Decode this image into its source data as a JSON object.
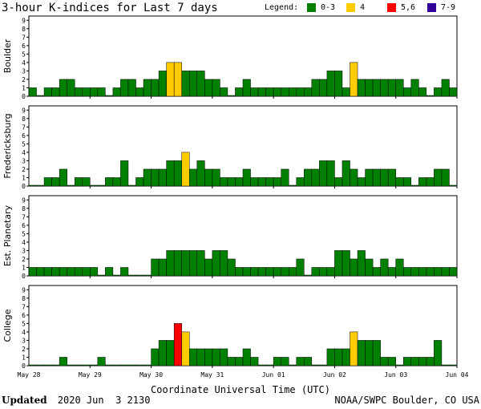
{
  "header": {
    "title": "3-hour K-indices for Last 7 days",
    "legend_label": "Legend:",
    "legend": [
      {
        "label": "0-3",
        "color": "#008000"
      },
      {
        "label": "4",
        "color": "#ffcc00"
      },
      {
        "label": "5,6",
        "color": "#ff0000"
      },
      {
        "label": "7-9",
        "color": "#330099"
      }
    ]
  },
  "footer": {
    "updated_label": "Updated",
    "updated_value": "2020 Jun  3 2130",
    "source": "NOAA/SWPC Boulder, CO USA"
  },
  "chart_data": {
    "type": "bar",
    "xlabel": "Coordinate Universal Time (UTC)",
    "x_ticks": [
      "May 28",
      "May 29",
      "May 30",
      "May 31",
      "Jun 01",
      "Jun 02",
      "Jun 03",
      "Jun 04"
    ],
    "ylim": [
      0,
      9
    ],
    "y_ticks": [
      0,
      1,
      2,
      3,
      4,
      5,
      6,
      7,
      8,
      9
    ],
    "grid": false,
    "legend_position": "top-right",
    "panels": [
      {
        "name": "Boulder",
        "values": [
          1,
          0,
          1,
          1,
          2,
          2,
          1,
          1,
          1,
          1,
          0,
          1,
          2,
          2,
          1,
          2,
          2,
          3,
          4,
          4,
          3,
          3,
          3,
          2,
          2,
          1,
          0,
          1,
          2,
          1,
          1,
          1,
          1,
          1,
          1,
          1,
          1,
          2,
          2,
          3,
          3,
          1,
          4,
          2,
          2,
          2,
          2,
          2,
          2,
          1,
          2,
          1,
          0,
          1,
          2,
          1,
          0
        ]
      },
      {
        "name": "Fredericksburg",
        "values": [
          0,
          0,
          1,
          1,
          2,
          0,
          1,
          1,
          0,
          0,
          1,
          1,
          3,
          0,
          1,
          2,
          2,
          2,
          3,
          3,
          4,
          2,
          3,
          2,
          2,
          1,
          1,
          1,
          2,
          1,
          1,
          1,
          1,
          2,
          0,
          1,
          2,
          2,
          3,
          3,
          1,
          3,
          2,
          1,
          2,
          2,
          2,
          2,
          1,
          1,
          0,
          1,
          1,
          2,
          2,
          0,
          0
        ]
      },
      {
        "name": "Est. Planetary",
        "values": [
          1,
          1,
          1,
          1,
          1,
          1,
          1,
          1,
          1,
          0,
          1,
          0,
          1,
          0,
          0,
          0,
          2,
          2,
          3,
          3,
          3,
          3,
          3,
          2,
          3,
          3,
          2,
          1,
          1,
          1,
          1,
          1,
          1,
          1,
          1,
          2,
          0,
          1,
          1,
          1,
          3,
          3,
          2,
          3,
          2,
          1,
          2,
          1,
          2,
          1,
          1,
          1,
          1,
          1,
          1,
          1,
          0
        ]
      },
      {
        "name": "College",
        "values": [
          0,
          0,
          0,
          0,
          1,
          0,
          0,
          0,
          0,
          1,
          0,
          0,
          0,
          0,
          0,
          0,
          2,
          3,
          3,
          5,
          4,
          2,
          2,
          2,
          2,
          2,
          1,
          1,
          2,
          1,
          0,
          0,
          1,
          1,
          0,
          1,
          1,
          0,
          0,
          2,
          2,
          2,
          4,
          3,
          3,
          3,
          1,
          1,
          0,
          1,
          1,
          1,
          1,
          3,
          0,
          0,
          0
        ]
      }
    ]
  }
}
